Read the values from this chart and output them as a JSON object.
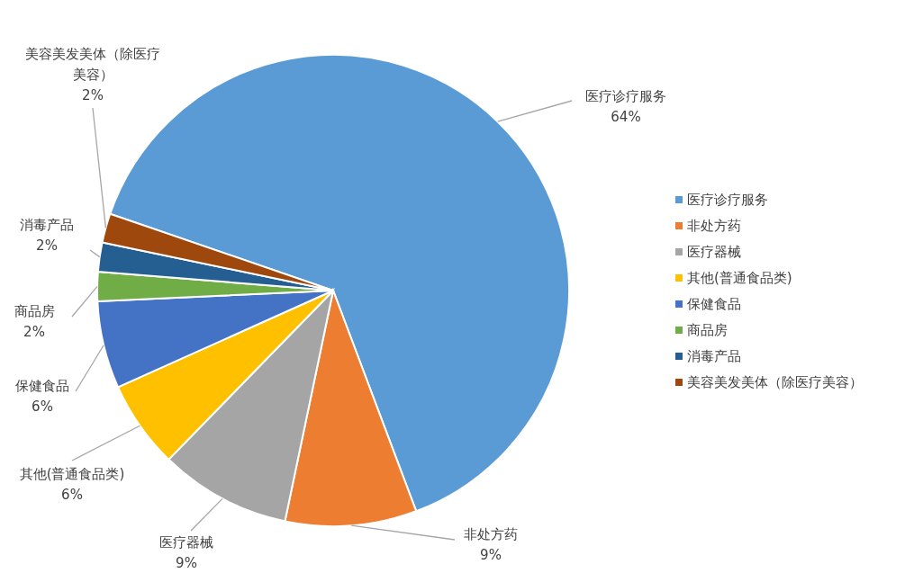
{
  "chart_data": {
    "type": "pie",
    "categories": [
      "医疗诊疗服务",
      "非处方药",
      "医疗器械",
      "其他(普通食品类)",
      "保健食品",
      "商品房",
      "消毒产品",
      "美容美发美体（除医疗美容）"
    ],
    "values": [
      64,
      9,
      9,
      6,
      6,
      2,
      2,
      2
    ],
    "colors": [
      "#5b9bd5",
      "#ed7d31",
      "#a5a5a5",
      "#ffc000",
      "#4472c4",
      "#70ad47",
      "#255e91",
      "#9e480e"
    ],
    "value_labels": [
      "64%",
      "9%",
      "9%",
      "6%",
      "6%",
      "2%",
      "2%",
      "2%"
    ],
    "legend": "right"
  }
}
